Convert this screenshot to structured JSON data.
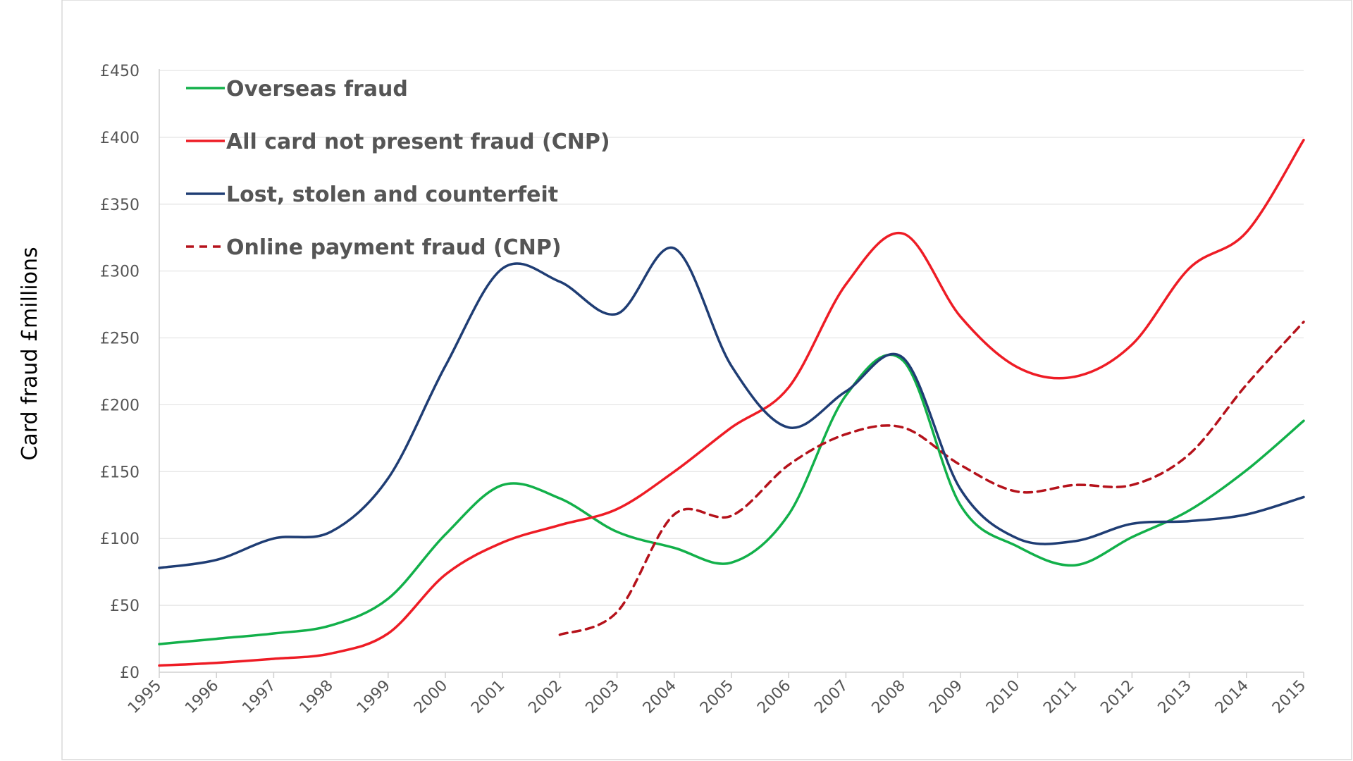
{
  "chart_data": {
    "type": "line",
    "ylabel": "Card fraud £millions",
    "xlabel": "",
    "x": [
      "1995",
      "1996",
      "1997",
      "1998",
      "1999",
      "2000",
      "2001",
      "2002",
      "2003",
      "2004",
      "2005",
      "2006",
      "2007",
      "2008",
      "2009",
      "2010",
      "2011",
      "2012",
      "2013",
      "2014",
      "2015"
    ],
    "y_ticks": [
      "£0",
      "£50",
      "£100",
      "£150",
      "£200",
      "£250",
      "£300",
      "£350",
      "£400",
      "£450"
    ],
    "ylim": [
      0,
      450
    ],
    "grid": true,
    "legend_position": "top-left",
    "series": [
      {
        "name": "Overseas fraud",
        "color": "#12b04a",
        "dashed": false,
        "x": [
          1995,
          1996,
          1997,
          1998,
          1999,
          2000,
          2001,
          2002,
          2003,
          2004,
          2005,
          2006,
          2007,
          2008,
          2009,
          2010,
          2011,
          2012,
          2013,
          2014,
          2015
        ],
        "values": [
          21,
          25,
          29,
          35,
          55,
          103,
          140,
          130,
          105,
          93,
          82,
          118,
          207,
          233,
          125,
          94,
          80,
          101,
          121,
          151,
          188
        ]
      },
      {
        "name": "All card not present fraud (CNP)",
        "color": "#ee1c25",
        "dashed": false,
        "x": [
          1995,
          1996,
          1997,
          1998,
          1999,
          2000,
          2001,
          2002,
          2003,
          2004,
          2005,
          2006,
          2007,
          2008,
          2009,
          2010,
          2011,
          2012,
          2013,
          2014,
          2015
        ],
        "values": [
          5,
          7,
          10,
          14,
          29,
          73,
          97,
          110,
          122,
          150,
          183,
          213,
          290,
          328,
          266,
          228,
          221,
          245,
          302,
          329,
          398
        ]
      },
      {
        "name": "Lost, stolen and counterfeit",
        "color": "#1f3d74",
        "dashed": false,
        "x": [
          1995,
          1996,
          1997,
          1998,
          1999,
          2000,
          2001,
          2002,
          2003,
          2004,
          2005,
          2006,
          2007,
          2008,
          2009,
          2010,
          2011,
          2012,
          2013,
          2014,
          2015
        ],
        "values": [
          78,
          84,
          100,
          105,
          145,
          229,
          302,
          292,
          268,
          317,
          229,
          183,
          210,
          235,
          137,
          100,
          98,
          111,
          113,
          118,
          131
        ]
      },
      {
        "name": "Online payment fraud (CNP)",
        "color": "#b5121b",
        "dashed": true,
        "x": [
          2002,
          2003,
          2004,
          2005,
          2006,
          2007,
          2008,
          2009,
          2010,
          2011,
          2012,
          2013,
          2014,
          2015
        ],
        "values": [
          28,
          45,
          118,
          117,
          155,
          178,
          183,
          155,
          135,
          140,
          140,
          163,
          215,
          262
        ]
      }
    ]
  }
}
